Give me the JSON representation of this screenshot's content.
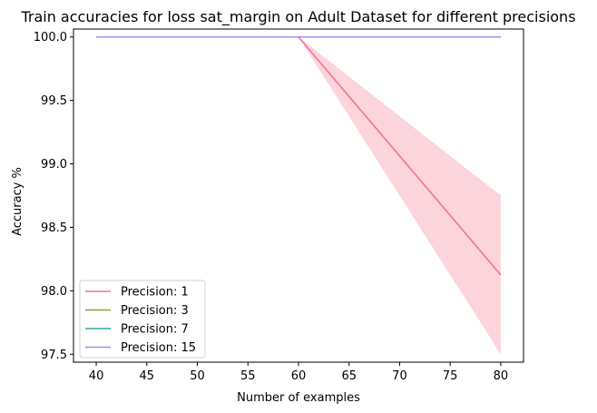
{
  "chart_data": {
    "type": "line",
    "title": "Train accuracies for loss sat_margin on Adult Dataset for different precisions",
    "xlabel": "Number of examples",
    "ylabel": "Accuracy %",
    "xlim": [
      37.75,
      82.25
    ],
    "ylim": [
      97.4375,
      100.0625
    ],
    "xticks": [
      40,
      45,
      50,
      55,
      60,
      65,
      70,
      75,
      80
    ],
    "yticks": [
      97.5,
      98.0,
      98.5,
      99.0,
      99.5,
      100.0
    ],
    "ytick_labels": [
      "97.5",
      "98.0",
      "98.5",
      "99.0",
      "99.5",
      "100.0"
    ],
    "grid": false,
    "legend_position": "lower-left",
    "x": [
      40,
      60,
      80
    ],
    "series": [
      {
        "name": "Precision: 1",
        "color": "#f37686",
        "values": [
          100.0,
          100.0,
          98.125
        ],
        "ci_lower": [
          100.0,
          100.0,
          97.5
        ],
        "ci_upper": [
          100.0,
          100.0,
          98.75
        ],
        "band_color": "#fcd4dc"
      },
      {
        "name": "Precision: 3",
        "color": "#8fa12c",
        "values": [
          100.0,
          100.0,
          100.0
        ]
      },
      {
        "name": "Precision: 7",
        "color": "#2eaa9a",
        "values": [
          100.0,
          100.0,
          100.0
        ]
      },
      {
        "name": "Precision: 15",
        "color": "#a48ef4",
        "values": [
          100.0,
          100.0,
          100.0
        ]
      }
    ]
  }
}
